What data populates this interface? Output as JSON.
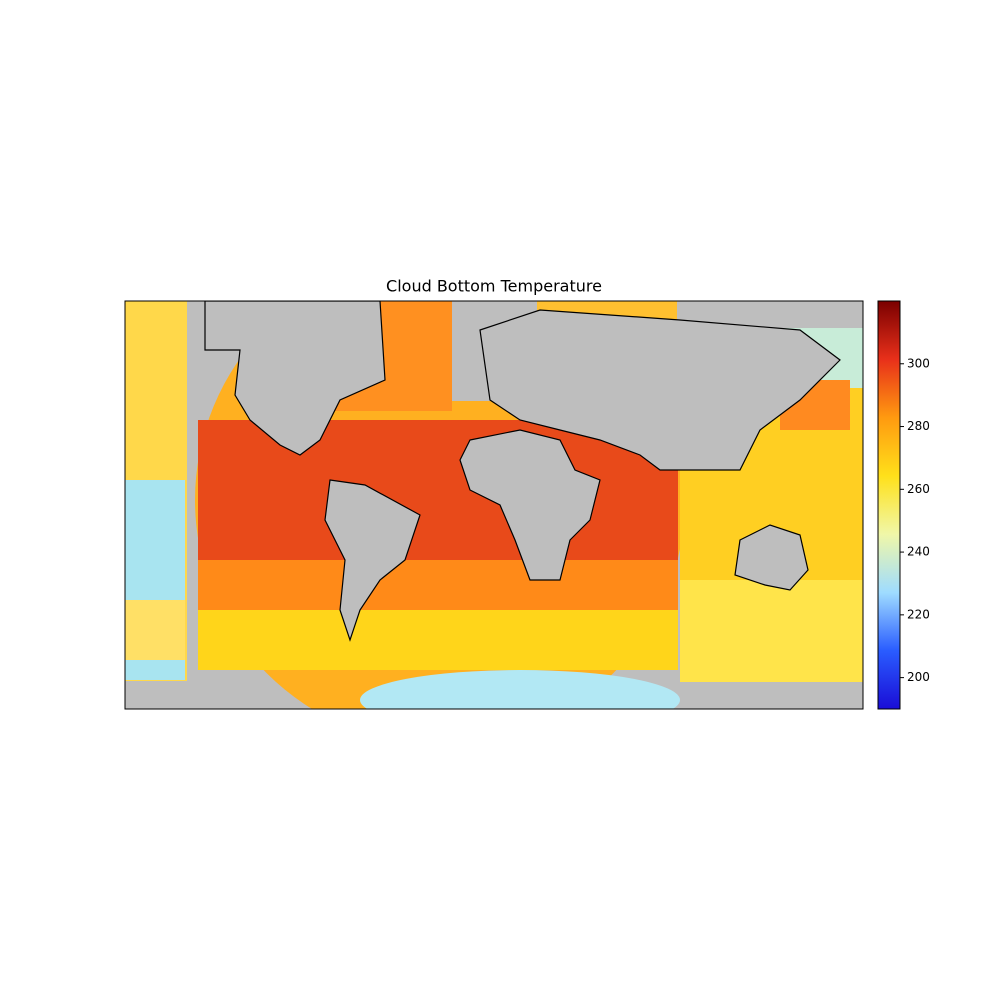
{
  "map": {
    "title": "Cloud Bottom Temperature",
    "colorbar": {
      "lim": [
        190,
        320
      ],
      "ticks": [
        200,
        220,
        240,
        260,
        280,
        300
      ],
      "colormap": [
        "#1a0dd6",
        "#2a5cff",
        "#9fdcff",
        "#f0f7a8",
        "#ffe01a",
        "#ff9a10",
        "#e8301a",
        "#7a0000"
      ]
    }
  }
}
